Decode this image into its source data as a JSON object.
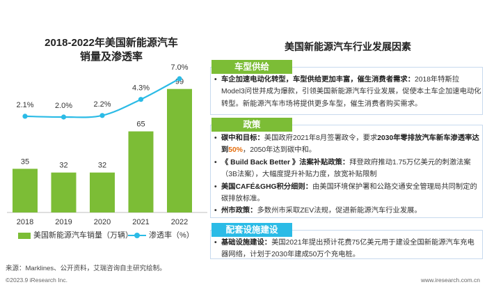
{
  "chart_title_line1": "2018-2022年美国新能源汽车",
  "chart_title_line2": "销量及渗透率",
  "chart_data": {
    "type": "bar",
    "categories": [
      "2018",
      "2019",
      "2020",
      "2021",
      "2022"
    ],
    "series": [
      {
        "name": "美国新能源汽车销量（万辆）",
        "type": "bar",
        "values": [
          35,
          32,
          32,
          65,
          99
        ],
        "labels": [
          "35",
          "32",
          "32",
          "65",
          "99"
        ],
        "color": "#7cbd36"
      },
      {
        "name": "渗透率（%）",
        "type": "line",
        "values": [
          2.1,
          2.0,
          2.2,
          4.3,
          7.0
        ],
        "labels": [
          "2.1%",
          "2.0%",
          "2.2%",
          "4.3%",
          "7.0%"
        ],
        "color": "#2bbbe6"
      }
    ],
    "ylim": [
      0,
      110
    ],
    "y2lim": [
      0,
      7.6
    ],
    "legend": "bottom"
  },
  "right_title": "美国新能源汽车行业发展因素",
  "sections": [
    {
      "tab": "车型供给",
      "color": "green",
      "items": [
        {
          "bold": "车企加速电动化转型，车型供给更加丰富，催生消费者需求：",
          "text": "2018年特斯拉Model3问世并成为爆款，引领美国新能源汽车行业发展，促使本土车企加速电动化转型。新能源汽车市场将提供更多车型，催生消费者购买需求。"
        }
      ]
    },
    {
      "tab": "政策",
      "color": "green",
      "items": [
        {
          "bold": "碳中和目标：",
          "pre": "美国政府2021年8月签署政令，要求",
          "bold2": "2030年零排放汽车新车渗透率达到",
          "hl": "50%",
          "text": "，2050年达到碳中和。"
        },
        {
          "bold": "《 Build Back Better 》法案补贴政策：",
          "text": "拜登政府推动1.75万亿美元的刺激法案（3B法案），大幅度提升补贴力度，放宽补贴限制"
        },
        {
          "bold": "美国CAFÉ&GHG积分细则：",
          "text": "由美国环境保护署和公路交通安全管理局共同制定的碳排放标准。"
        },
        {
          "bold": "州市政策：",
          "text": "多数州市采取ZEV法规，促进新能源汽车行业发展。"
        }
      ]
    },
    {
      "tab": "配套设施建设",
      "color": "blue",
      "items": [
        {
          "bold": "基础设施建设：",
          "text": "美国2021年提出预计花费75亿美元用于建设全国新能源汽车充电器网络，计划于2030年建成50万个充电桩。"
        }
      ]
    }
  ],
  "source": "来源：Marklines、公开资料，艾瑞咨询自主研究绘制。",
  "copyright": "©2023.9 iResearch Inc.",
  "url": "www.iresearch.com.cn"
}
